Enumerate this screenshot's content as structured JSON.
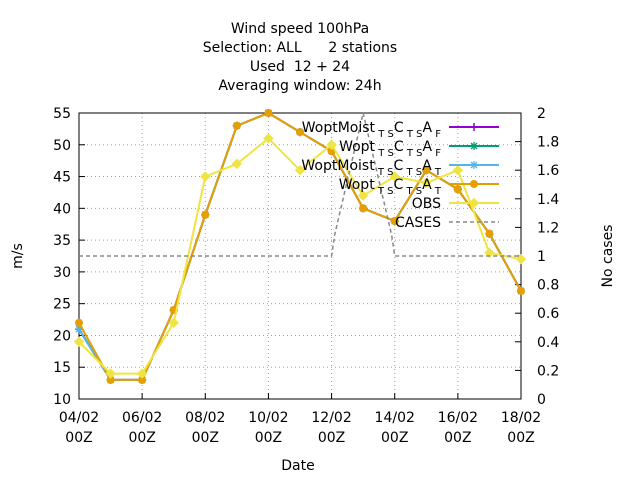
{
  "chart_data": {
    "type": "line",
    "title_lines": [
      "Wind speed 100hPa",
      "Selection: ALL      2 stations",
      "Used  12 + 24",
      "Averaging window: 24h"
    ],
    "xlabel": "Date",
    "ylabel": "m/s",
    "y2label": "No cases",
    "xlim": [
      0,
      7
    ],
    "ylim": [
      10,
      55
    ],
    "y2lim": [
      0,
      2
    ],
    "x_ticks": [
      {
        "v": 0,
        "l1": "04/02",
        "l2": "00Z"
      },
      {
        "v": 1,
        "l1": "06/02",
        "l2": "00Z"
      },
      {
        "v": 2,
        "l1": "08/02",
        "l2": "00Z"
      },
      {
        "v": 3,
        "l1": "10/02",
        "l2": "00Z"
      },
      {
        "v": 4,
        "l1": "12/02",
        "l2": "00Z"
      },
      {
        "v": 5,
        "l1": "14/02",
        "l2": "00Z"
      },
      {
        "v": 6,
        "l1": "16/02",
        "l2": "00Z"
      },
      {
        "v": 7,
        "l1": "18/02",
        "l2": "00Z"
      }
    ],
    "y_ticks": [
      10,
      15,
      20,
      25,
      30,
      35,
      40,
      45,
      50,
      55
    ],
    "y2_ticks": [
      "0",
      "0.2",
      "0.4",
      "0.6",
      "0.8",
      "1",
      "1.2",
      "1.4",
      "1.6",
      "1.8",
      "2"
    ],
    "grid": true,
    "legend_position": "top-right",
    "series": [
      {
        "label_base": "WoptMoist",
        "sub": "T S",
        "mid": "C",
        "sub2": "T S",
        "mid2": "A",
        "sub3": "F",
        "color": "#9400d3",
        "marker": "plus",
        "axis": "y",
        "x": [
          0,
          0.5,
          1,
          1.5,
          2,
          2.5,
          3,
          3.5,
          4,
          4.5,
          5,
          5.5,
          6,
          6.5,
          7
        ],
        "y": [
          21,
          13,
          13,
          24,
          39,
          53,
          55,
          52,
          49,
          40,
          38,
          46,
          43,
          36,
          27
        ]
      },
      {
        "label_base": "Wopt",
        "sub": "T S",
        "mid": "C",
        "sub2": "T S",
        "mid2": "A",
        "sub3": "F",
        "color": "#009e73",
        "marker": "star",
        "axis": "y",
        "x": [
          0,
          0.5,
          1,
          1.5,
          2,
          2.5,
          3,
          3.5,
          4,
          4.5,
          5,
          5.5,
          6,
          6.5,
          7
        ],
        "y": [
          21,
          13,
          13,
          24,
          39,
          53,
          55,
          52,
          49,
          40,
          38,
          46,
          43,
          36,
          27
        ]
      },
      {
        "label_base": "WoptMoist",
        "sub": "T S",
        "mid": "C",
        "sub2": "T S",
        "mid2": "A",
        "sub3": "T",
        "color": "#56b4e9",
        "marker": "star",
        "axis": "y",
        "x": [
          0,
          0.5,
          1,
          1.5,
          2,
          2.5,
          3,
          3.5,
          4,
          4.5,
          5,
          5.5,
          6,
          6.5,
          7
        ],
        "y": [
          21,
          13,
          13,
          24,
          39,
          53,
          55,
          52,
          49,
          40,
          38,
          46,
          43,
          36,
          27
        ]
      },
      {
        "label_base": "Wopt",
        "sub": "T S",
        "mid": "C",
        "sub2": "T S",
        "mid2": "A",
        "sub3": "T",
        "color": "#e69f00",
        "marker": "circle",
        "axis": "y",
        "x": [
          0,
          0.5,
          1,
          1.5,
          2,
          2.5,
          3,
          3.5,
          4,
          4.5,
          5,
          5.5,
          6,
          6.5,
          7
        ],
        "y": [
          22,
          13,
          13,
          24,
          39,
          53,
          55,
          52,
          49,
          40,
          38,
          46,
          43,
          36,
          27
        ]
      },
      {
        "label_base": "OBS",
        "color": "#f0e442",
        "marker": "diamond",
        "axis": "y",
        "x": [
          0,
          0.5,
          1,
          1.5,
          2,
          2.5,
          3,
          3.5,
          4,
          4.5,
          5,
          5.5,
          6,
          6.5,
          7
        ],
        "y": [
          19,
          14,
          14,
          22,
          45,
          47,
          51,
          46,
          50,
          42,
          45,
          44,
          46,
          33,
          32
        ]
      },
      {
        "label_base": "CASES",
        "color": "#888888",
        "marker": "none",
        "dashed": true,
        "axis": "y2",
        "x": [
          0,
          4,
          4.05,
          4.5,
          4.95,
          5,
          6,
          7
        ],
        "y": [
          1,
          1,
          1.15,
          2,
          1.15,
          1,
          1,
          1
        ]
      }
    ]
  }
}
